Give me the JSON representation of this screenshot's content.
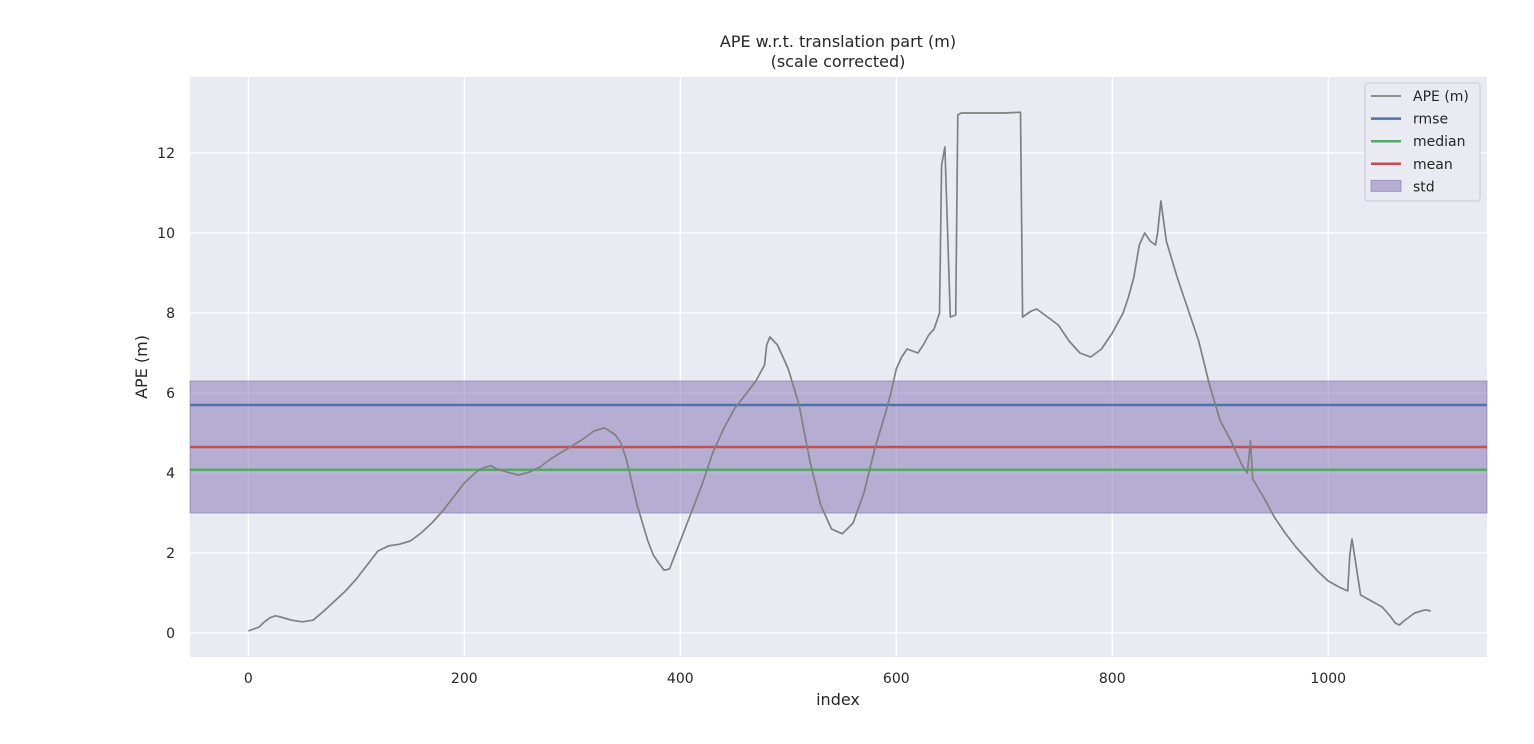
{
  "chart_data": {
    "type": "line",
    "title": "APE w.r.t. translation part (m)",
    "subtitle": "(scale corrected)",
    "xlabel": "index",
    "ylabel": "APE (m)",
    "xlim": [
      -54,
      1147
    ],
    "ylim": [
      -0.6,
      13.9
    ],
    "xticks": [
      0,
      200,
      400,
      600,
      800,
      1000
    ],
    "yticks": [
      0,
      2,
      4,
      6,
      8,
      10,
      12
    ],
    "grid": true,
    "legend_position": "top-right",
    "legend": [
      "APE (m)",
      "rmse",
      "median",
      "mean",
      "std"
    ],
    "colors": {
      "plot_background": "#eaeaf2",
      "grid": "#ffffff",
      "ape": "#808080",
      "rmse": "#4c72b0",
      "median": "#55a868",
      "mean": "#c44e52",
      "std": "#8172b2"
    },
    "stats": {
      "rmse": 5.7,
      "median": 4.08,
      "mean": 4.65,
      "std_band": [
        3.0,
        6.3
      ]
    },
    "series": [
      {
        "name": "APE (m)",
        "x": [
          0,
          10,
          15,
          20,
          25,
          30,
          40,
          50,
          60,
          70,
          80,
          90,
          100,
          110,
          120,
          130,
          140,
          150,
          160,
          170,
          180,
          190,
          200,
          210,
          215,
          220,
          225,
          230,
          240,
          250,
          260,
          270,
          280,
          290,
          300,
          310,
          320,
          330,
          340,
          345,
          350,
          360,
          370,
          375,
          380,
          385,
          390,
          400,
          410,
          420,
          430,
          440,
          450,
          460,
          470,
          478,
          480,
          483,
          490,
          500,
          510,
          520,
          530,
          540,
          550,
          560,
          570,
          580,
          590,
          595,
          600,
          605,
          610,
          620,
          625,
          630,
          635,
          640,
          642,
          645,
          650,
          655,
          657,
          660,
          680,
          700,
          715,
          717,
          725,
          730,
          740,
          750,
          760,
          770,
          780,
          790,
          800,
          810,
          815,
          820,
          825,
          830,
          835,
          840,
          842,
          845,
          850,
          860,
          870,
          880,
          890,
          900,
          910,
          920,
          925,
          928,
          930,
          940,
          950,
          960,
          970,
          980,
          990,
          1000,
          1010,
          1018,
          1020,
          1022,
          1030,
          1040,
          1050,
          1058,
          1062,
          1066,
          1070,
          1080,
          1090,
          1095
        ],
        "values": [
          0.05,
          0.15,
          0.28,
          0.38,
          0.43,
          0.4,
          0.32,
          0.28,
          0.32,
          0.55,
          0.8,
          1.05,
          1.35,
          1.7,
          2.05,
          2.18,
          2.22,
          2.3,
          2.5,
          2.75,
          3.05,
          3.4,
          3.75,
          4.0,
          4.1,
          4.15,
          4.18,
          4.1,
          4.02,
          3.95,
          4.02,
          4.15,
          4.35,
          4.52,
          4.68,
          4.85,
          5.05,
          5.13,
          4.95,
          4.75,
          4.35,
          3.2,
          2.3,
          1.95,
          1.75,
          1.57,
          1.6,
          2.3,
          3.0,
          3.7,
          4.5,
          5.1,
          5.6,
          5.95,
          6.3,
          6.7,
          7.2,
          7.4,
          7.2,
          6.6,
          5.7,
          4.3,
          3.2,
          2.6,
          2.48,
          2.75,
          3.5,
          4.6,
          5.5,
          6.0,
          6.6,
          6.9,
          7.1,
          7.0,
          7.2,
          7.45,
          7.6,
          8.0,
          11.7,
          12.15,
          7.9,
          7.95,
          12.95,
          13.0,
          13.0,
          13.0,
          13.02,
          7.9,
          8.05,
          8.1,
          7.9,
          7.7,
          7.3,
          7.0,
          6.9,
          7.1,
          7.5,
          8.0,
          8.4,
          8.9,
          9.7,
          10.0,
          9.8,
          9.7,
          10.0,
          10.8,
          9.8,
          8.9,
          8.1,
          7.3,
          6.2,
          5.3,
          4.8,
          4.2,
          4.0,
          4.8,
          3.85,
          3.4,
          2.9,
          2.5,
          2.15,
          1.85,
          1.55,
          1.3,
          1.15,
          1.05,
          1.95,
          2.35,
          0.95,
          0.8,
          0.65,
          0.4,
          0.25,
          0.2,
          0.3,
          0.5,
          0.58,
          0.55
        ]
      },
      {
        "name": "rmse",
        "value": 5.7
      },
      {
        "name": "median",
        "value": 4.08
      },
      {
        "name": "mean",
        "value": 4.65
      },
      {
        "name": "std",
        "range": [
          3.0,
          6.3
        ]
      }
    ]
  }
}
